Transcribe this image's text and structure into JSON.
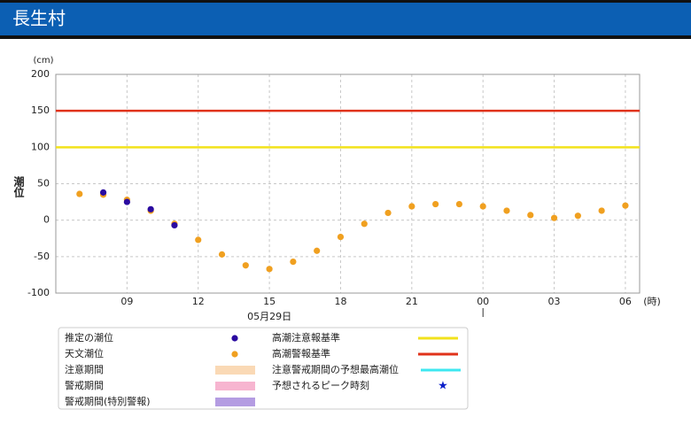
{
  "header": {
    "title": "長生村"
  },
  "chart_data": {
    "type": "scatter",
    "y_unit": "(cm)",
    "y_label": "潮位",
    "x_unit": "(時)",
    "date_label": "05月29日",
    "x": [
      7,
      8,
      9,
      10,
      11,
      12,
      13,
      14,
      15,
      16,
      17,
      18,
      19,
      20,
      21,
      22,
      23,
      24,
      25,
      26,
      27,
      28,
      29,
      30
    ],
    "series": [
      {
        "name": "推定の潮位",
        "color": "#2a0aa0",
        "values": [
          null,
          38,
          25,
          15,
          -7,
          null,
          null,
          null,
          null,
          null,
          null,
          null,
          null,
          null,
          null,
          null,
          null,
          null,
          null,
          null,
          null,
          null,
          null,
          null
        ]
      },
      {
        "name": "天文潮位",
        "color": "#f0a020",
        "values": [
          36,
          35,
          28,
          13,
          -5,
          -27,
          -47,
          -62,
          -67,
          -57,
          -42,
          -23,
          -5,
          10,
          19,
          22,
          22,
          19,
          13,
          7,
          3,
          6,
          13,
          20
        ]
      }
    ],
    "thresholds": [
      {
        "name": "高潮注意報基準",
        "value": 100,
        "color": "#f2e21c"
      },
      {
        "name": "高潮警報基準",
        "value": 150,
        "color": "#e0321a"
      }
    ],
    "legend_extras": [
      {
        "name": "注意期間",
        "color": "#fad9b5",
        "kind": "rect"
      },
      {
        "name": "警戒期間",
        "color": "#f7b5d0",
        "kind": "rect"
      },
      {
        "name": "警戒期間(特別警報)",
        "color": "#b49ce2",
        "kind": "rect"
      },
      {
        "name": "注意警戒期間の予想最高潮位",
        "color": "#3ee8f0",
        "kind": "line"
      },
      {
        "name": "予想されるピーク時刻",
        "color": "#0a1ec8",
        "kind": "star"
      }
    ],
    "xlim": [
      6,
      30.6
    ],
    "ylim": [
      -100,
      200
    ],
    "xticks": [
      {
        "value": 9,
        "label": "09"
      },
      12,
      15,
      18,
      21,
      {
        "value": 24,
        "label": "00"
      },
      {
        "value": 27,
        "label": "03"
      },
      {
        "value": 30,
        "label": "06"
      }
    ],
    "yticks": [
      -100,
      -50,
      0,
      50,
      100,
      150,
      200
    ],
    "grid": true
  }
}
